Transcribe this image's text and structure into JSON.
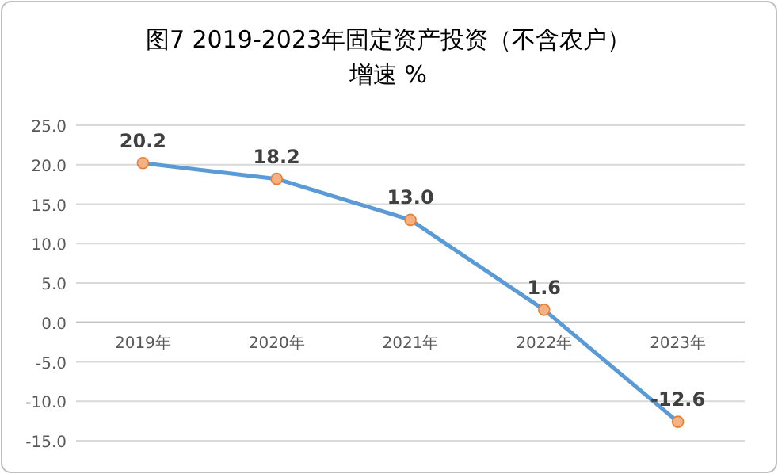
{
  "chart_data": {
    "type": "line",
    "title": "图7  2019-2023年固定资产投资（不含农户）",
    "subtitle": "增速 %",
    "categories": [
      "2019年",
      "2020年",
      "2021年",
      "2022年",
      "2023年"
    ],
    "series": [
      {
        "color": "#5b9bd5",
        "values": [
          20.2,
          18.2,
          13.0,
          1.6,
          -12.6
        ],
        "value_labels": [
          "20.2",
          "18.2",
          "13.0",
          "1.6",
          "-12.6"
        ]
      }
    ],
    "ylim": [
      -15,
      25
    ],
    "yticks": [
      {
        "value": -15,
        "label": "-15.0"
      },
      {
        "value": -10,
        "label": "-10.0"
      },
      {
        "value": -5,
        "label": "-5.0"
      },
      {
        "value": 0,
        "label": "0.0"
      },
      {
        "value": 5,
        "label": "5.0"
      },
      {
        "value": 10,
        "label": "10.0"
      },
      {
        "value": 15,
        "label": "15.0"
      },
      {
        "value": 20,
        "label": "20.0"
      },
      {
        "value": 25,
        "label": "25.0"
      }
    ],
    "grid": "y",
    "marker": "circle"
  }
}
